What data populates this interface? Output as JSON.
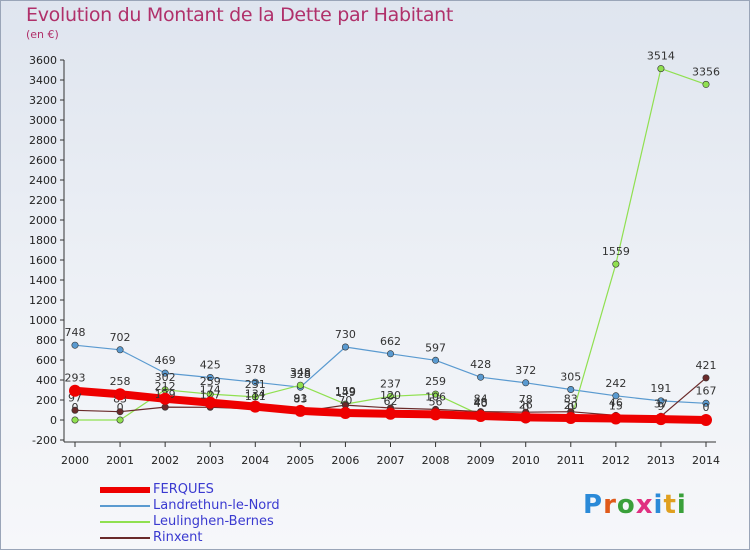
{
  "title": "Evolution du Montant de la Dette par Habitant",
  "subtitle": "(en €)",
  "logo": "Proxiti",
  "chart_data": {
    "type": "line",
    "title": "Evolution du Montant de la Dette par Habitant",
    "subtitle": "(en €)",
    "x": [
      "2000",
      "2001",
      "2002",
      "2003",
      "2004",
      "2005",
      "2006",
      "2007",
      "2008",
      "2009",
      "2010",
      "2011",
      "2012",
      "2013",
      "2014"
    ],
    "ylim": [
      -200,
      3600
    ],
    "yticks": [
      -200,
      0,
      200,
      400,
      600,
      800,
      1000,
      1200,
      1400,
      1600,
      1800,
      2000,
      2200,
      2400,
      2600,
      2800,
      3000,
      3200,
      3400,
      3600
    ],
    "grid": false,
    "legend_position": "bottom-left",
    "series": [
      {
        "name": "FERQUES",
        "color": "#ee0000",
        "values": [
          293,
          258,
          212,
          174,
          134,
          91,
          70,
          62,
          56,
          40,
          26,
          20,
          15,
          9,
          0
        ]
      },
      {
        "name": "Landrethun-le-Nord",
        "color": "#5a9ad0",
        "values": [
          748,
          702,
          469,
          425,
          378,
          328,
          730,
          662,
          597,
          428,
          372,
          305,
          242,
          191,
          167
        ]
      },
      {
        "name": "Leulinghen-Bernes",
        "color": "#90e050",
        "values": [
          0,
          0,
          302,
          259,
          231,
          348,
          159,
          237,
          259,
          48,
          0,
          0,
          1559,
          3514,
          3356
        ]
      },
      {
        "name": "Rinxent",
        "color": "#6a2a2a",
        "values": [
          97,
          83,
          129,
          127,
          111,
          83,
          149,
          120,
          106,
          84,
          78,
          83,
          46,
          37,
          421
        ]
      }
    ]
  }
}
